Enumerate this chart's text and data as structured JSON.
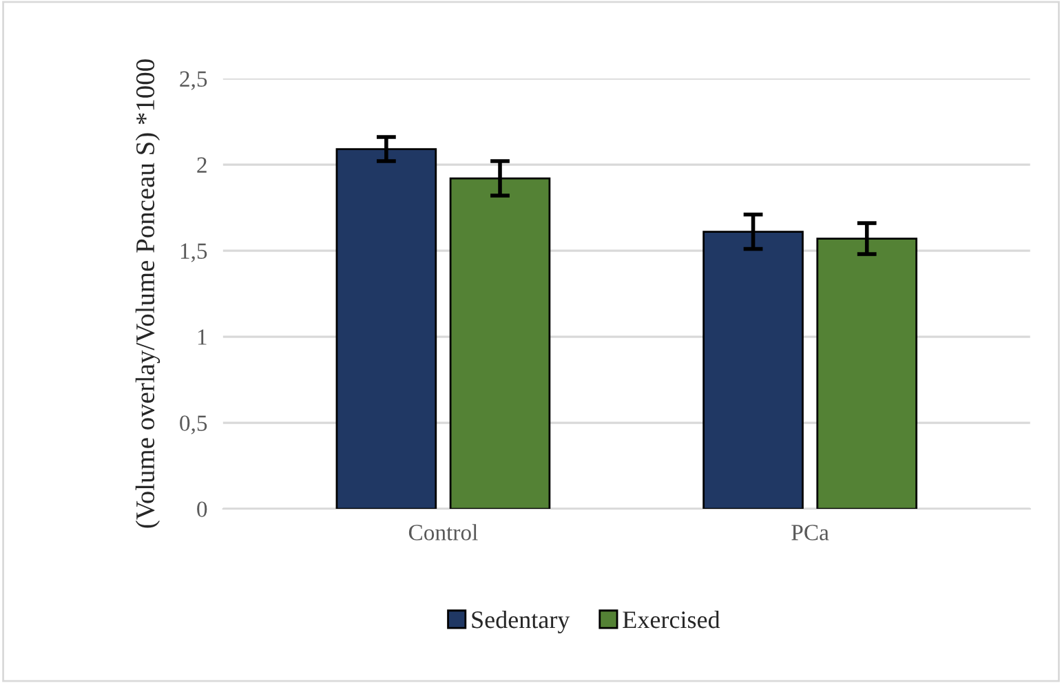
{
  "chart_data": {
    "type": "bar",
    "ylabel": "(Volume overlay/Volume Ponceau S) *1000",
    "categories": [
      "Control",
      "PCa"
    ],
    "series": [
      {
        "name": "Sedentary",
        "color": "#203864",
        "values": [
          2.09,
          1.61
        ],
        "errors": [
          0.07,
          0.1
        ]
      },
      {
        "name": "Exercised",
        "color": "#548235",
        "values": [
          1.92,
          1.57
        ],
        "errors": [
          0.1,
          0.09
        ]
      }
    ],
    "ylim": [
      0,
      2.5
    ],
    "yticks": [
      0,
      {
        "value": 0.5,
        "label": "0,5"
      },
      1,
      {
        "value": 1.5,
        "label": "1,5"
      },
      2,
      {
        "value": 2.5,
        "label": "2,5"
      }
    ],
    "grid": "y",
    "legend": "bottom"
  }
}
